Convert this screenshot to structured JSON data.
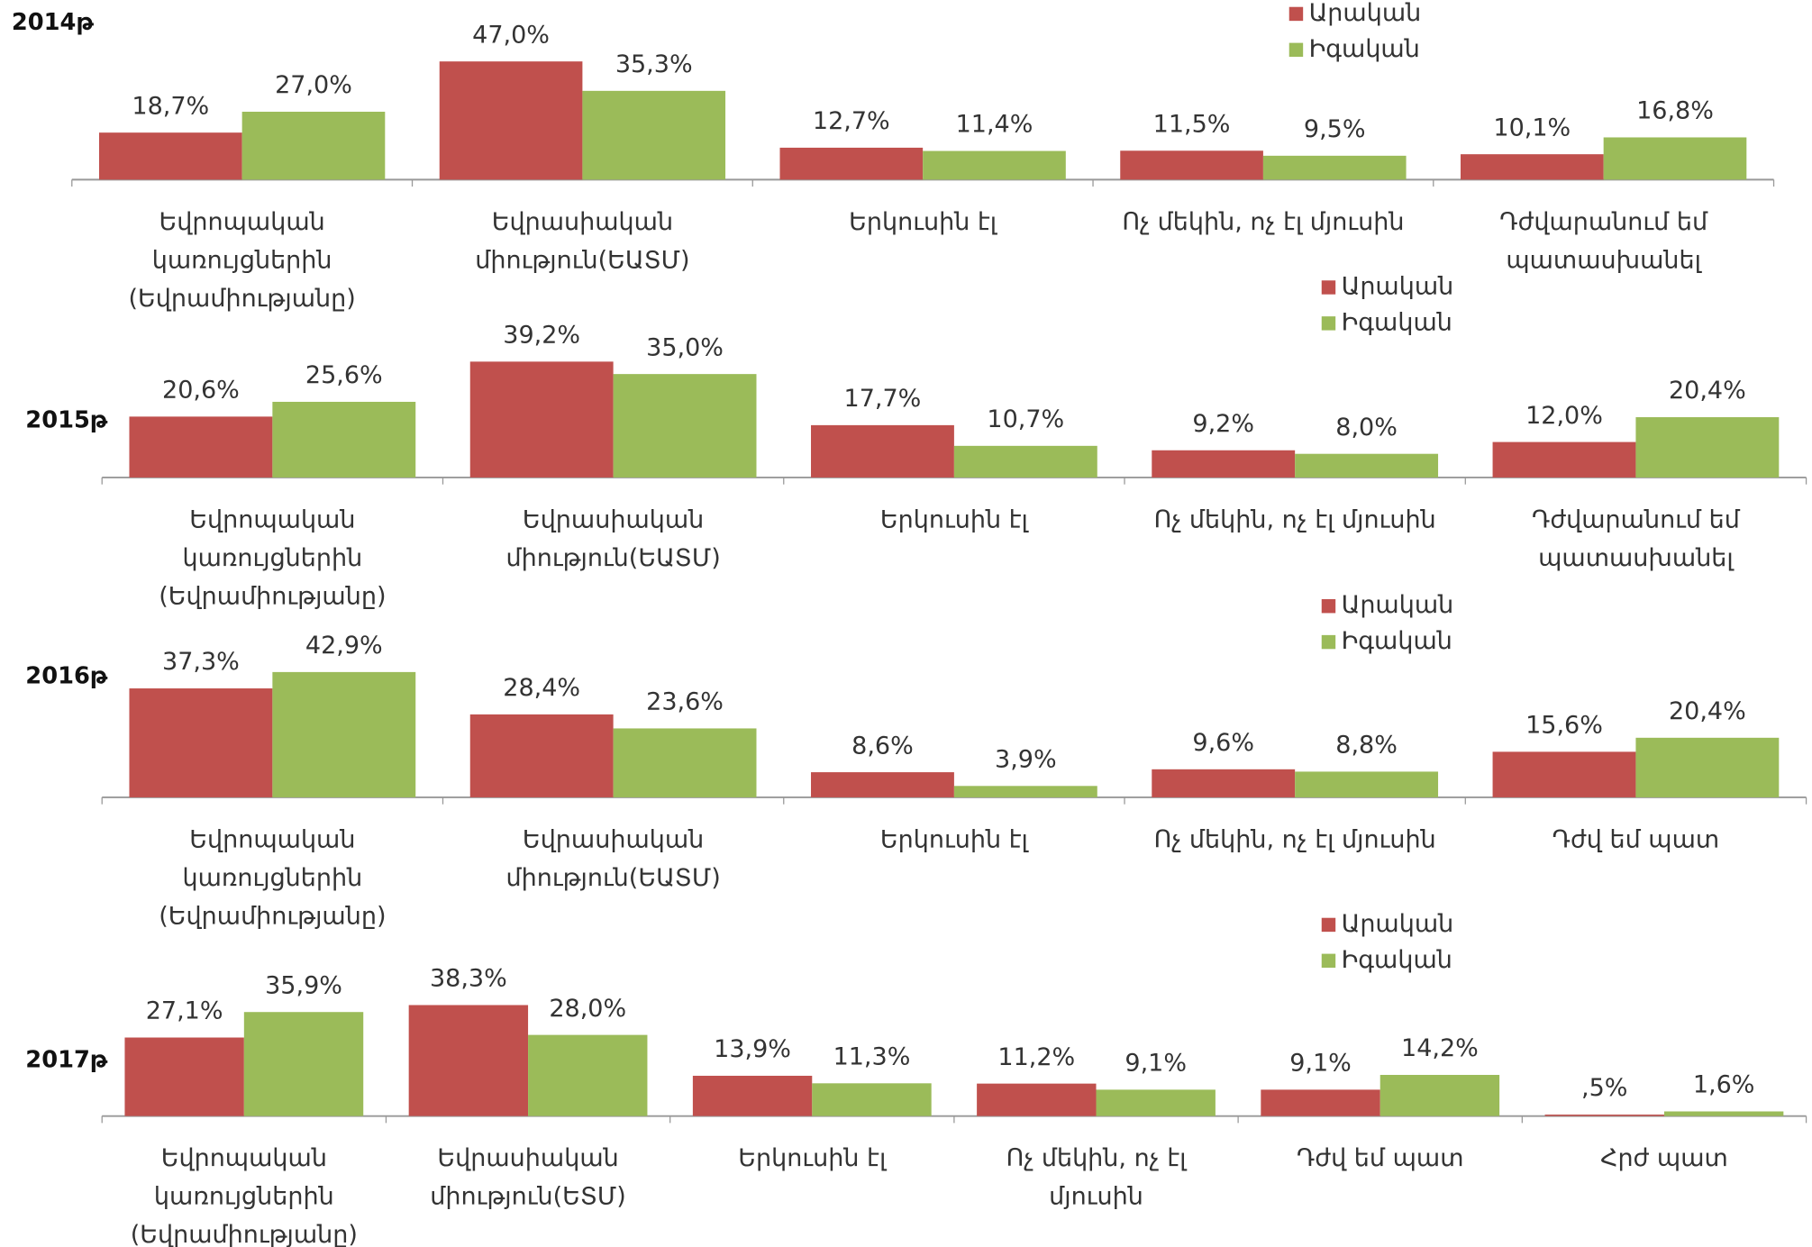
{
  "chart_data": [
    {
      "type": "bar",
      "title": "2014թ",
      "categories": [
        "Եվրոպական\nկառույցներին\n(Եվրամիությանը)",
        "Եվրասիական\nմիություն(ԵԱՏՄ)",
        "Երկուսին էլ",
        "Ոչ մեկին, ոչ էլ մյուսին",
        "Դժվարանում եմ\nպատասխանել"
      ],
      "series": [
        {
          "name": "Արական",
          "color": "#c0504d",
          "values": [
            18.7,
            47.0,
            12.7,
            11.5,
            10.1
          ],
          "value_labels": [
            "18,7%",
            "47,0%",
            "12,7%",
            "11,5%",
            "10,1%"
          ]
        },
        {
          "name": "Իգական",
          "color": "#9bbb59",
          "values": [
            27.0,
            35.3,
            11.4,
            9.5,
            16.8
          ],
          "value_labels": [
            "27,0%",
            "35,3%",
            "11,4%",
            "9,5%",
            "16,8%"
          ]
        }
      ]
    },
    {
      "type": "bar",
      "title": "2015թ",
      "categories": [
        "Եվրոպական\nկառույցներին\n(Եվրամիությանը)",
        "Եվրասիական\nմիություն(ԵԱՏՄ)",
        "Երկուսին էլ",
        "Ոչ մեկին, ոչ էլ մյուսին",
        "Դժվարանում եմ\nպատասխանել"
      ],
      "series": [
        {
          "name": "Արական",
          "color": "#c0504d",
          "values": [
            20.6,
            39.2,
            17.7,
            9.2,
            12.0
          ],
          "value_labels": [
            "20,6%",
            "39,2%",
            "17,7%",
            "9,2%",
            "12,0%"
          ]
        },
        {
          "name": "Իգական",
          "color": "#9bbb59",
          "values": [
            25.6,
            35.0,
            10.7,
            8.0,
            20.4
          ],
          "value_labels": [
            "25,6%",
            "35,0%",
            "10,7%",
            "8,0%",
            "20,4%"
          ]
        }
      ]
    },
    {
      "type": "bar",
      "title": "2016թ",
      "categories": [
        "Եվրոպական\nկառույցներին\n(Եվրամիությանը)",
        "Եվրասիական\nմիություն(ԵԱՏՄ)",
        "Երկուսին էլ",
        "Ոչ մեկին, ոչ էլ մյուսին",
        "Դժվ եմ պատ"
      ],
      "series": [
        {
          "name": "Արական",
          "color": "#c0504d",
          "values": [
            37.3,
            28.4,
            8.6,
            9.6,
            15.6
          ],
          "value_labels": [
            "37,3%",
            "28,4%",
            "8,6%",
            "9,6%",
            "15,6%"
          ]
        },
        {
          "name": "Իգական",
          "color": "#9bbb59",
          "values": [
            42.9,
            23.6,
            3.9,
            8.8,
            20.4
          ],
          "value_labels": [
            "42,9%",
            "23,6%",
            "3,9%",
            "8,8%",
            "20,4%"
          ]
        }
      ]
    },
    {
      "type": "bar",
      "title": "2017թ",
      "categories": [
        "Եվրոպական\nկառույցներին\n(Եվրամիությանը)",
        "Եվրասիական\nմիություն(ԵՏՄ)",
        "Երկուսին էլ",
        "Ոչ մեկին, ոչ էլ\nմյուսին",
        "Դժվ եմ պատ",
        "Հրժ պատ"
      ],
      "series": [
        {
          "name": "Արական",
          "color": "#c0504d",
          "values": [
            27.1,
            38.3,
            13.9,
            11.2,
            9.1,
            0.5
          ],
          "value_labels": [
            "27,1%",
            "38,3%",
            "13,9%",
            "11,2%",
            "9,1%",
            ",5%"
          ]
        },
        {
          "name": "Իգական",
          "color": "#9bbb59",
          "values": [
            35.9,
            28.0,
            11.3,
            9.1,
            14.2,
            1.6
          ],
          "value_labels": [
            "35,9%",
            "28,0%",
            "11,3%",
            "9,1%",
            "14,2%",
            "1,6%"
          ]
        }
      ]
    }
  ]
}
